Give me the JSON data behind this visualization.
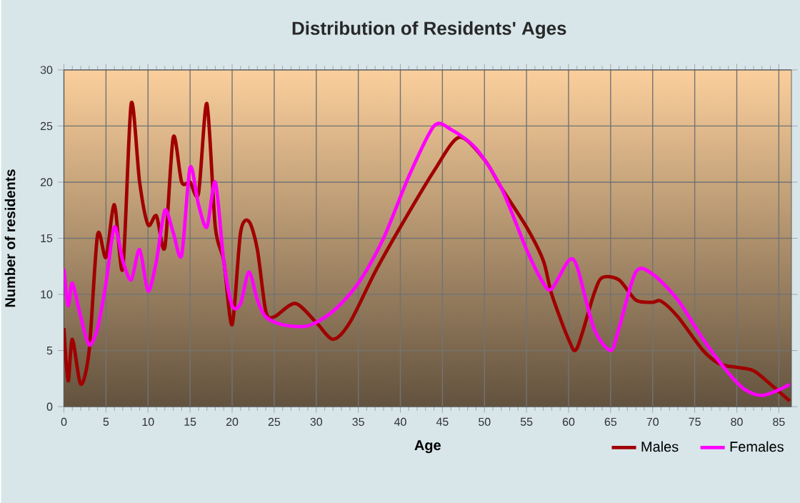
{
  "chart_data": {
    "type": "line",
    "title": "Distribution of Residents' Ages",
    "xlabel": "Age",
    "ylabel": "Number of residents",
    "xlim": [
      0,
      86.5
    ],
    "xticks": [
      0,
      5,
      10,
      15,
      20,
      25,
      30,
      35,
      40,
      45,
      50,
      55,
      60,
      65,
      70,
      75,
      80,
      85
    ],
    "ylim": [
      0,
      30
    ],
    "yticks": [
      0,
      5,
      10,
      15,
      20,
      25,
      30
    ],
    "grid": true,
    "legend": "bottom right",
    "marker": "none",
    "line_style": "solid",
    "series": [
      {
        "name": "Males",
        "color": "#a00000",
        "x": [
          0,
          0.5,
          1,
          2,
          3,
          4,
          5,
          6,
          7,
          8,
          9,
          10,
          11,
          12,
          13,
          14,
          15,
          16,
          17,
          18,
          19,
          20,
          21,
          22,
          23,
          24,
          25,
          27.5,
          30,
          32,
          34,
          37,
          40,
          44,
          47,
          50,
          52,
          55,
          57,
          58,
          60,
          61,
          63,
          64,
          66,
          68,
          70,
          71,
          73,
          76,
          78,
          80,
          82,
          84,
          86.3
        ],
        "values": [
          7,
          2.3,
          6,
          2,
          5,
          15.3,
          13.3,
          18,
          12.3,
          27,
          20,
          16.2,
          17,
          14.2,
          24,
          20,
          20,
          19,
          27,
          16,
          13,
          7.3,
          15.5,
          16.5,
          14,
          8.5,
          8,
          9.2,
          7.5,
          6,
          7.5,
          12,
          16,
          21,
          24,
          22,
          19.5,
          16,
          13,
          10,
          6,
          5.2,
          10,
          11.5,
          11.3,
          9.5,
          9.3,
          9.4,
          8,
          5,
          3.8,
          3.5,
          3.2,
          2,
          0.5
        ]
      },
      {
        "name": "Females",
        "color": "#ff00ff",
        "x": [
          0,
          0.5,
          1,
          2,
          3,
          4,
          5,
          6,
          7,
          8,
          9,
          10,
          11,
          12,
          13,
          14,
          15,
          16,
          17,
          18,
          19,
          20,
          21,
          22,
          23,
          24,
          26,
          29,
          32,
          35,
          38,
          41,
          44,
          46,
          49,
          52,
          55,
          57,
          58,
          60,
          61,
          63,
          65,
          66,
          68,
          70,
          73,
          76,
          79,
          81,
          83,
          85,
          86.3
        ],
        "values": [
          12.3,
          9,
          11,
          8,
          5.5,
          7,
          11,
          16,
          13,
          11.3,
          14,
          10.3,
          13,
          17.5,
          15.5,
          13.5,
          21.3,
          18,
          16,
          20,
          13,
          9,
          9.2,
          12,
          9.5,
          8,
          7.3,
          7.2,
          8.5,
          11,
          15,
          20.5,
          25,
          24.7,
          23,
          19.5,
          14,
          11,
          10.5,
          13,
          12.5,
          7,
          5,
          7,
          12,
          11.8,
          9.5,
          6,
          3,
          1.5,
          1,
          1.5,
          2
        ]
      }
    ]
  }
}
